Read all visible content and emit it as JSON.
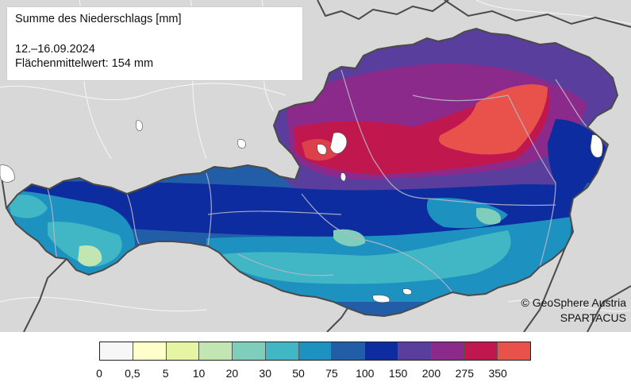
{
  "map": {
    "title": "Summe des Niederschlags [mm]",
    "period": "12.–16.09.2024",
    "area_mean": "Flächenmittelwert: 154 mm",
    "credit_line1": "© GeoSphere Austria",
    "credit_line2": "SPARTACUS"
  },
  "legend": {
    "bins": [
      {
        "color": "#f7f7f7"
      },
      {
        "color": "#ffffcc"
      },
      {
        "color": "#e6f5a3"
      },
      {
        "color": "#c2e6b3"
      },
      {
        "color": "#7fcdbb"
      },
      {
        "color": "#41b6c4"
      },
      {
        "color": "#1d91c0"
      },
      {
        "color": "#225ea8"
      },
      {
        "color": "#0c2ca0"
      },
      {
        "color": "#5a3e9e"
      },
      {
        "color": "#8c2a8c"
      },
      {
        "color": "#c0184e"
      },
      {
        "color": "#e8524a"
      }
    ],
    "ticks": [
      "0",
      "0,5",
      "5",
      "10",
      "20",
      "30",
      "50",
      "75",
      "100",
      "150",
      "200",
      "275",
      "350"
    ]
  },
  "colors": {
    "background_land": "#d8d8d8",
    "border_line": "#4a4a4a",
    "region_line": "#bdbdbd",
    "lake": "#ffffff"
  }
}
